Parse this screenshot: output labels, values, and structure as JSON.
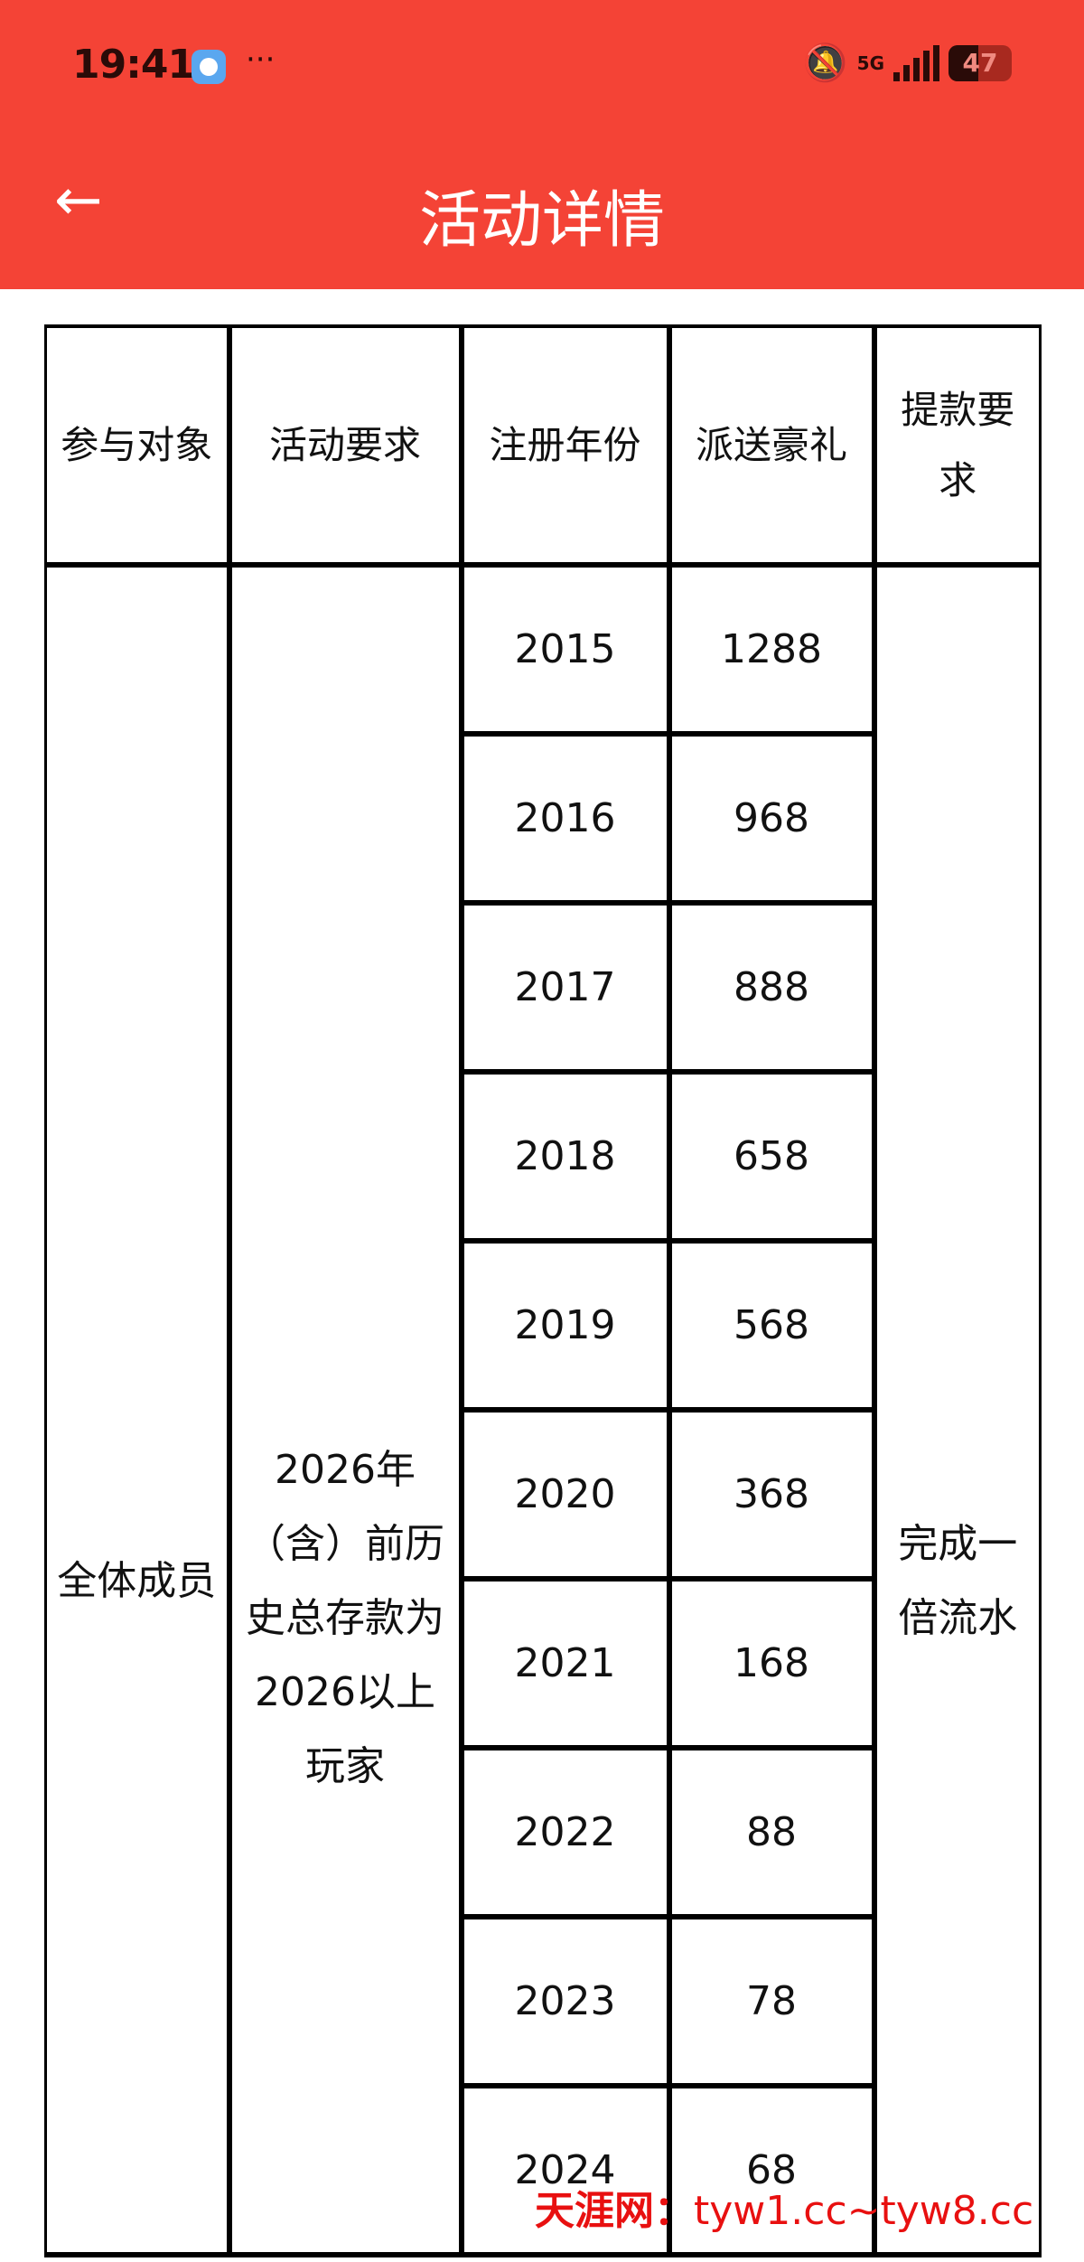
{
  "status_bar": {
    "time": "19:41",
    "more": "···",
    "network": "5G",
    "battery_level": 47,
    "battery_text": "47"
  },
  "header": {
    "back_icon": "arrow-left-icon",
    "title": "活动详情"
  },
  "table": {
    "columns": [
      "参与对象",
      "活动要求",
      "注册年份",
      "派送豪礼",
      "提款要求"
    ],
    "participants": "全体成员",
    "requirement": "2026年（含）前历史总存款为2026以上玩家",
    "withdrawal": "完成一倍流水",
    "rows": [
      {
        "year": "2015",
        "gift": "1288"
      },
      {
        "year": "2016",
        "gift": "968"
      },
      {
        "year": "2017",
        "gift": "888"
      },
      {
        "year": "2018",
        "gift": "658"
      },
      {
        "year": "2019",
        "gift": "568"
      },
      {
        "year": "2020",
        "gift": "368"
      },
      {
        "year": "2021",
        "gift": "168"
      },
      {
        "year": "2022",
        "gift": "88"
      },
      {
        "year": "2023",
        "gift": "78"
      },
      {
        "year": "2024",
        "gift": "68"
      }
    ]
  },
  "watermark": {
    "brand": "天涯网：",
    "domains": "tyw1.cc~tyw8.cc"
  },
  "colors": {
    "header_bg": "#f44336",
    "watermark": "#e81010"
  }
}
